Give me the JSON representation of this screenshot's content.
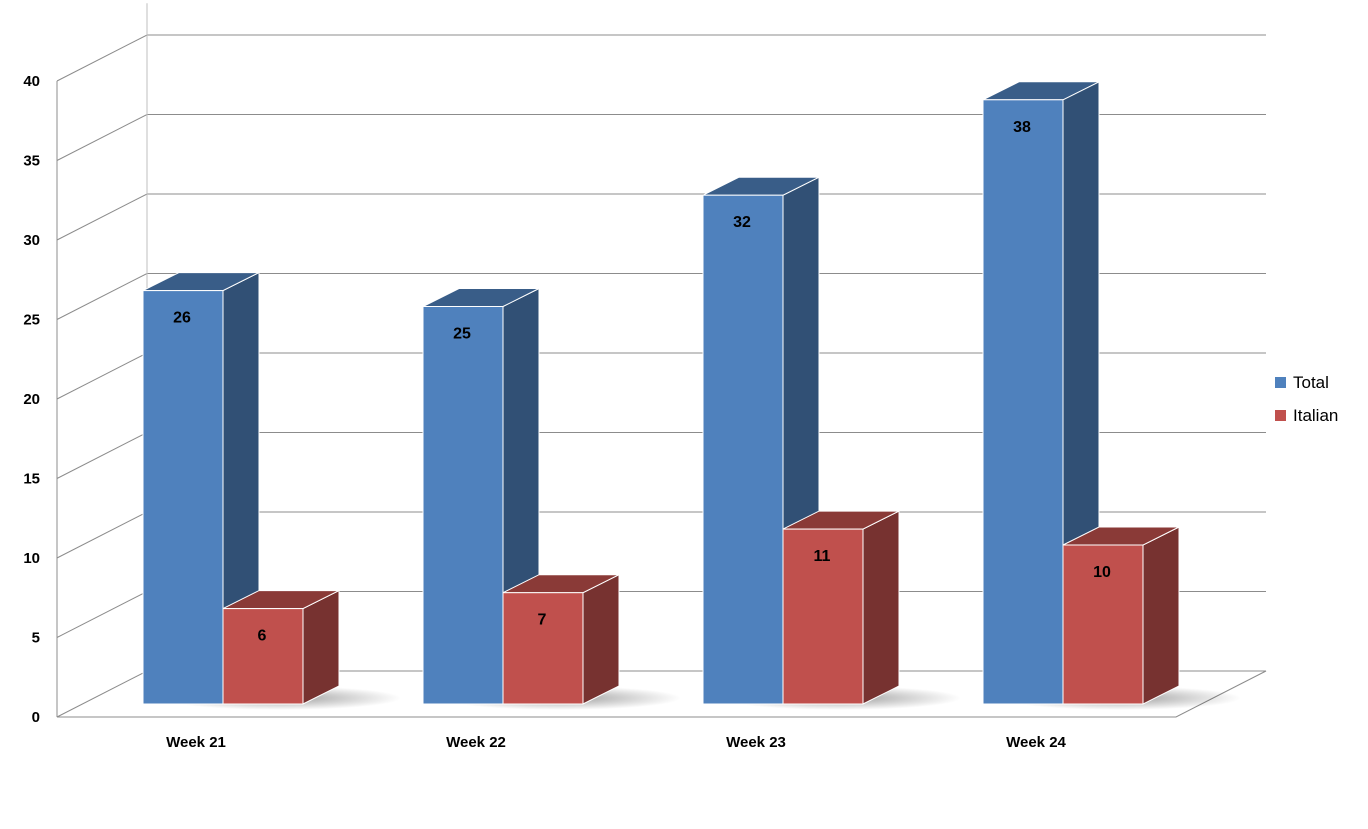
{
  "chart_data": {
    "type": "bar",
    "categories": [
      "Week 21",
      "Week 22",
      "Week 23",
      "Week 24"
    ],
    "series": [
      {
        "name": "Total",
        "values": [
          26,
          25,
          32,
          38
        ],
        "color": "#4F81BD"
      },
      {
        "name": "Italian",
        "values": [
          6,
          7,
          11,
          10
        ],
        "color": "#C0504D"
      }
    ],
    "ylim": [
      0,
      40
    ],
    "yticks": [
      0,
      5,
      10,
      15,
      20,
      25,
      30,
      35,
      40
    ],
    "grid": true,
    "legend_position": "right",
    "style": "3d-column"
  }
}
